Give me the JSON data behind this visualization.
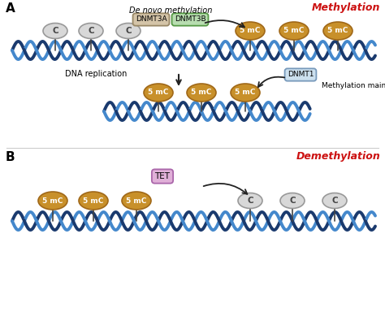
{
  "bg_color": "#ffffff",
  "dna_dark": "#1a3a6e",
  "dna_light": "#4488cc",
  "methylated_color": "#c8902a",
  "methylated_edge": "#a06818",
  "unmethylated_color": "#d8d8d8",
  "unmethylated_edge": "#999999",
  "title_color": "#cc1111",
  "stem_color": "#444444",
  "dnmt3a_face": "#d4c4a8",
  "dnmt3a_edge": "#998866",
  "dnmt3b_face": "#b8ddb0",
  "dnmt3b_edge": "#559944",
  "dnmt1_face": "#cce0ee",
  "dnmt1_edge": "#7799bb",
  "tet_face": "#e0b0d8",
  "tet_edge": "#aa66aa",
  "arrow_color": "#222222",
  "label_A": "A",
  "label_B": "B",
  "de_novo_text": "De novo methylation",
  "dna_replication_text": "DNA replication",
  "methylation_maintenance_text": "Methylation maintenance",
  "dnmt3a_text": "DNMT3A",
  "dnmt3b_text": "DNMT3B",
  "dnmt1_text": "DNMT1",
  "tet_text": "TET",
  "fivemC_text": "5 mC",
  "C_text": "C",
  "title_methylation": "Methylation",
  "title_demethylation": "Demethylation"
}
